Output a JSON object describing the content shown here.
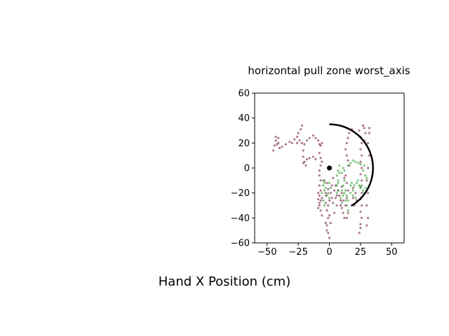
{
  "chart_data": {
    "type": "scatter",
    "title": "horizontal pull zone worst_axis",
    "xlabel": "Hand X Position (cm)",
    "ylabel": "",
    "xlim": [
      -60,
      60
    ],
    "ylim": [
      -60,
      60
    ],
    "xticks": [
      -50,
      -25,
      0,
      25,
      50
    ],
    "yticks": [
      -60,
      -40,
      -20,
      0,
      20,
      40,
      60
    ],
    "xtick_labels": [
      "−50",
      "−25",
      "0",
      "25",
      "50"
    ],
    "ytick_labels": [
      "−60",
      "−40",
      "−20",
      "0",
      "20",
      "40",
      "60"
    ],
    "grid": false,
    "legend": "none",
    "colors": {
      "series_a": "#6b0f36",
      "series_b": "#1a9a1a",
      "arc": "#000000",
      "center": "#000000"
    },
    "center_point": {
      "x": 0,
      "y": 0
    },
    "arc": {
      "radius": 35,
      "start_angle_deg": 90,
      "end_angle_deg": -60
    },
    "series": [
      {
        "points": [
          [
            -43,
            22
          ],
          [
            -44,
            18
          ],
          [
            -45,
            14
          ],
          [
            -43,
            25
          ],
          [
            -41,
            24
          ],
          [
            -42,
            19
          ],
          [
            -40,
            16
          ],
          [
            -41,
            20
          ],
          [
            -38,
            17
          ],
          [
            -35,
            19
          ],
          [
            -32,
            21
          ],
          [
            -30,
            20
          ],
          [
            -28,
            23
          ],
          [
            -26,
            25
          ],
          [
            -25,
            28
          ],
          [
            -23,
            31
          ],
          [
            -22,
            34
          ],
          [
            -24,
            22
          ],
          [
            -26,
            20
          ],
          [
            -22,
            20
          ],
          [
            -20,
            19
          ],
          [
            -18,
            22
          ],
          [
            -16,
            24
          ],
          [
            -13,
            26
          ],
          [
            -11,
            24
          ],
          [
            -9,
            22
          ],
          [
            -8,
            19
          ],
          [
            -7,
            18
          ],
          [
            -6,
            20
          ],
          [
            -21,
            14
          ],
          [
            -21,
            9
          ],
          [
            -20,
            5
          ],
          [
            -19,
            2
          ],
          [
            -21,
            4
          ],
          [
            -18,
            7
          ],
          [
            -16,
            8
          ],
          [
            -13,
            9
          ],
          [
            -11,
            7
          ],
          [
            -8,
            12
          ],
          [
            -7,
            8
          ],
          [
            -6,
            5
          ],
          [
            -7,
            2
          ],
          [
            -8,
            -2
          ],
          [
            -8,
            -6
          ],
          [
            -7,
            -10
          ],
          [
            -8,
            -14
          ],
          [
            -7,
            -18
          ],
          [
            -8,
            -22
          ],
          [
            -7,
            -26
          ],
          [
            -8,
            -30
          ],
          [
            -7,
            -34
          ],
          [
            -6,
            -38
          ],
          [
            -8,
            -28
          ],
          [
            -9,
            -25
          ],
          [
            -9,
            -20
          ],
          [
            -6,
            -24
          ],
          [
            -9,
            -32
          ],
          [
            -2,
            -12
          ],
          [
            -1,
            -17
          ],
          [
            -2,
            -22
          ],
          [
            -3,
            -28
          ],
          [
            -2,
            -34
          ],
          [
            -1,
            -40
          ],
          [
            -2,
            -46
          ],
          [
            -1,
            -52
          ],
          [
            0,
            -56
          ],
          [
            -2,
            -50
          ],
          [
            -3,
            -44
          ],
          [
            0,
            -38
          ],
          [
            1,
            -44
          ],
          [
            -1,
            -30
          ],
          [
            0,
            -26
          ],
          [
            1,
            -20
          ],
          [
            2,
            -24
          ],
          [
            -3,
            -20
          ],
          [
            2,
            -14
          ],
          [
            -4,
            -10
          ],
          [
            3,
            -8
          ],
          [
            4,
            -18
          ],
          [
            5,
            -24
          ],
          [
            6,
            -30
          ],
          [
            4,
            -36
          ],
          [
            3,
            -28
          ],
          [
            6,
            -22
          ],
          [
            5,
            -14
          ],
          [
            7,
            -18
          ],
          [
            13,
            -6
          ],
          [
            14,
            -12
          ],
          [
            15,
            -18
          ],
          [
            14,
            -24
          ],
          [
            13,
            -30
          ],
          [
            15,
            -36
          ],
          [
            14,
            -40
          ],
          [
            13,
            15
          ],
          [
            14,
            10
          ],
          [
            15,
            6
          ],
          [
            16,
            2
          ],
          [
            14,
            20
          ],
          [
            15,
            24
          ],
          [
            16,
            28
          ],
          [
            18,
            31
          ],
          [
            12,
            -8
          ],
          [
            10,
            -15
          ],
          [
            8,
            -22
          ],
          [
            11,
            -26
          ],
          [
            9,
            -30
          ],
          [
            24,
            30
          ],
          [
            25,
            25
          ],
          [
            26,
            20
          ],
          [
            25,
            15
          ],
          [
            26,
            10
          ],
          [
            25,
            5
          ],
          [
            26,
            0
          ],
          [
            25,
            -5
          ],
          [
            26,
            -10
          ],
          [
            25,
            -15
          ],
          [
            26,
            -20
          ],
          [
            25,
            -25
          ],
          [
            26,
            -30
          ],
          [
            25,
            -35
          ],
          [
            26,
            -40
          ],
          [
            25,
            -45
          ],
          [
            24,
            -52
          ],
          [
            25,
            -48
          ],
          [
            30,
            -46
          ],
          [
            31,
            -40
          ],
          [
            30,
            -30
          ],
          [
            31,
            -20
          ],
          [
            30,
            -10
          ],
          [
            31,
            0
          ],
          [
            32,
            10
          ],
          [
            31,
            20
          ],
          [
            32,
            28
          ],
          [
            32,
            32
          ],
          [
            28,
            32
          ],
          [
            27,
            34
          ],
          [
            29,
            28
          ],
          [
            28,
            22
          ],
          [
            21,
            -20
          ],
          [
            22,
            -26
          ],
          [
            20,
            -30
          ],
          [
            19,
            -24
          ],
          [
            19,
            -16
          ],
          [
            10,
            -20
          ],
          [
            9,
            -26
          ],
          [
            10,
            -32
          ],
          [
            11,
            -36
          ],
          [
            12,
            -40
          ]
        ]
      },
      {
        "points": [
          [
            -5,
            -14
          ],
          [
            -4,
            -18
          ],
          [
            -3,
            -22
          ],
          [
            -5,
            -26
          ],
          [
            -4,
            -30
          ],
          [
            -3,
            -16
          ],
          [
            -6,
            -20
          ],
          [
            -4,
            -12
          ],
          [
            -5,
            -10
          ],
          [
            -1,
            -20
          ],
          [
            0,
            -24
          ],
          [
            1,
            -16
          ],
          [
            0,
            -12
          ],
          [
            6,
            -6
          ],
          [
            7,
            -10
          ],
          [
            6,
            -14
          ],
          [
            7,
            -18
          ],
          [
            8,
            -4
          ],
          [
            7,
            -2
          ],
          [
            8,
            2
          ],
          [
            7,
            -12
          ],
          [
            6,
            -20
          ],
          [
            9,
            -24
          ],
          [
            10,
            -28
          ],
          [
            11,
            -22
          ],
          [
            12,
            -20
          ],
          [
            10,
            -18
          ],
          [
            11,
            -14
          ],
          [
            12,
            -10
          ],
          [
            10,
            -4
          ],
          [
            11,
            0
          ],
          [
            12,
            -2
          ],
          [
            13,
            -18
          ],
          [
            14,
            -22
          ],
          [
            15,
            -26
          ],
          [
            14,
            -30
          ],
          [
            15,
            -34
          ],
          [
            13,
            -26
          ],
          [
            17,
            -14
          ],
          [
            18,
            -12
          ],
          [
            19,
            -18
          ],
          [
            20,
            -14
          ],
          [
            22,
            -12
          ],
          [
            23,
            -10
          ],
          [
            24,
            -14
          ],
          [
            25,
            -16
          ],
          [
            26,
            -14
          ],
          [
            27,
            -18
          ],
          [
            28,
            -20
          ],
          [
            29,
            -16
          ],
          [
            15,
            2
          ],
          [
            17,
            4
          ],
          [
            19,
            6
          ],
          [
            21,
            5
          ],
          [
            23,
            4
          ],
          [
            25,
            3
          ],
          [
            27,
            -2
          ],
          [
            28,
            2
          ],
          [
            29,
            -6
          ],
          [
            30,
            -8
          ],
          [
            17,
            -20
          ],
          [
            19,
            -22
          ],
          [
            21,
            -24
          ]
        ]
      }
    ]
  }
}
